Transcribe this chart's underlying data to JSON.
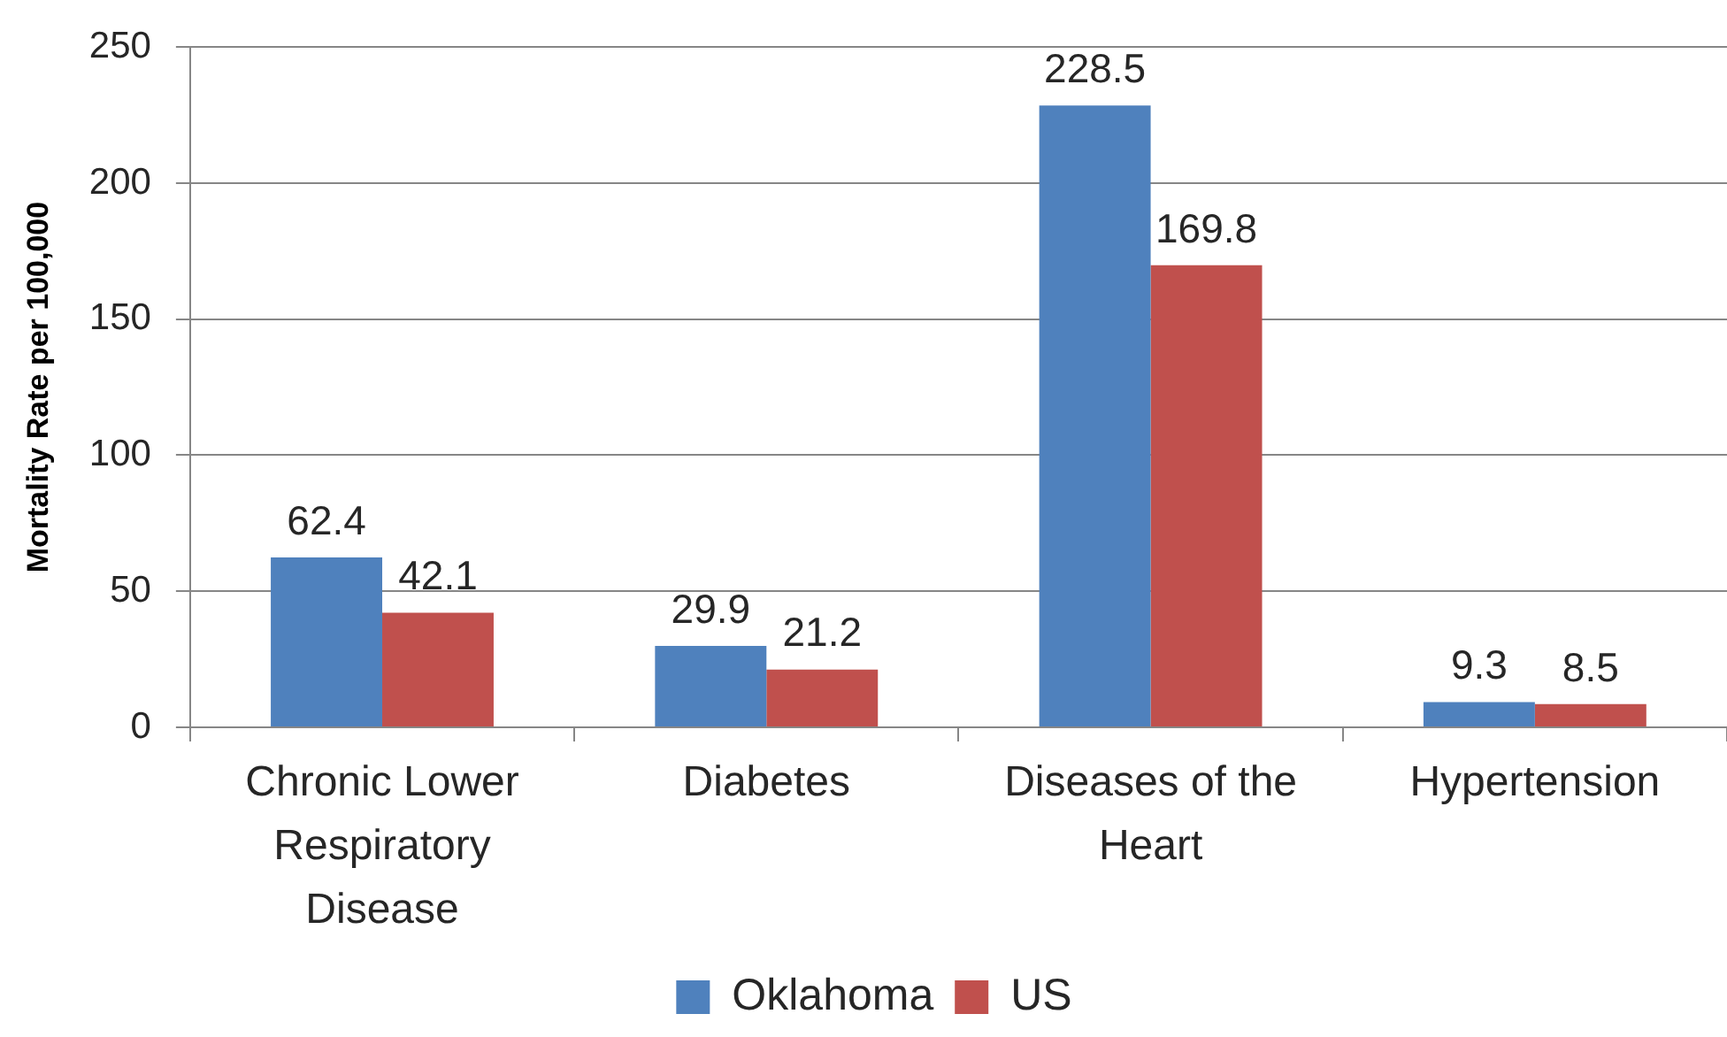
{
  "chart_data": {
    "type": "bar",
    "ylabel": "Mortality Rate per 100,000",
    "categories": [
      "Chronic Lower Respiratory Disease",
      "Diabetes",
      "Diseases of the Heart",
      "Hypertension"
    ],
    "series": [
      {
        "name": "Oklahoma",
        "color": "#4f81bd",
        "values": [
          62.4,
          29.9,
          228.5,
          9.3
        ]
      },
      {
        "name": "US",
        "color": "#c0504d",
        "values": [
          42.1,
          21.2,
          169.8,
          8.5
        ]
      }
    ],
    "ylim": [
      0,
      250
    ],
    "yticks": [
      0,
      50,
      100,
      150,
      200,
      250
    ],
    "grid": "y",
    "legend": "bottom",
    "data_labels": true
  }
}
